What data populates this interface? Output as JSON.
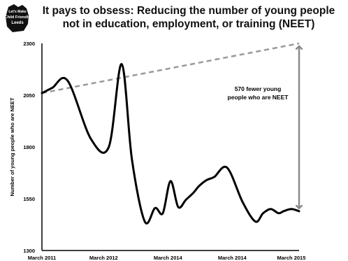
{
  "logo": {
    "icon": "hand-badge-icon",
    "line1": "Let's Make",
    "line2": "Child Friendly",
    "line3": "Leeds"
  },
  "header": {
    "title": "It pays to obsess: Reducing the number of young people not in education, employment, or training (NEET)"
  },
  "chart_data": {
    "type": "line",
    "title": "It pays to obsess: Reducing the number of young people not in education, employment, or training (NEET)",
    "xlabel": "",
    "ylabel": "Number of young people who are NEET",
    "ylim": [
      1300,
      2300
    ],
    "yticks": [
      1300,
      1550,
      1800,
      2050,
      2300
    ],
    "xtick_labels": [
      "March 2011",
      "March 2012",
      "March 2014",
      "March 2014",
      "March 2015"
    ],
    "series": [
      {
        "color": "#000000",
        "x": [
          0,
          0.04,
          0.1,
          0.19,
          0.26,
          0.31,
          0.35,
          0.4,
          0.44,
          0.47,
          0.5,
          0.53,
          0.56,
          0.59,
          0.61,
          0.64,
          0.67,
          0.72,
          0.78,
          0.83,
          0.86,
          0.89,
          0.92,
          0.94,
          0.97,
          1.0
        ],
        "values": [
          2060,
          2085,
          2120,
          1840,
          1800,
          2200,
          1740,
          1440,
          1505,
          1480,
          1635,
          1510,
          1545,
          1580,
          1610,
          1640,
          1655,
          1700,
          1535,
          1440,
          1480,
          1500,
          1480,
          1490,
          1500,
          1490
        ]
      },
      {
        "color": "#999999",
        "style": "dashed",
        "x": [
          0,
          1.0
        ],
        "values": [
          2060,
          2300
        ]
      }
    ],
    "annotation": {
      "text_line1": "570 fewer young",
      "text_line2": "people who are NEET",
      "arrow_from": 2300,
      "arrow_to": 1490
    },
    "grid": false,
    "legend": "none"
  },
  "colors": {
    "line": "#000000",
    "trend": "#999999",
    "arrow": "#8a8a8a"
  }
}
